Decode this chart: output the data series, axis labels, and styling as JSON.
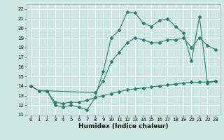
{
  "xlabel": "Humidex (Indice chaleur)",
  "bg_color": "#cce8e0",
  "line_color": "#2e7d6e",
  "grid_color": "#ffffff",
  "xlim": [
    -0.5,
    23.5
  ],
  "ylim": [
    11,
    22.5
  ],
  "xticks": [
    0,
    1,
    2,
    3,
    4,
    5,
    6,
    7,
    8,
    9,
    10,
    11,
    12,
    13,
    14,
    15,
    16,
    17,
    18,
    19,
    20,
    21,
    22,
    23
  ],
  "yticks": [
    11,
    12,
    13,
    14,
    15,
    16,
    17,
    18,
    19,
    20,
    21,
    22
  ],
  "curve1_x": [
    0,
    1,
    2,
    3,
    4,
    5,
    6,
    7,
    8,
    9,
    10,
    11,
    12,
    13,
    14,
    15,
    16,
    17,
    18,
    19,
    20,
    21,
    22,
    23
  ],
  "curve1_y": [
    14.0,
    13.5,
    13.5,
    12.0,
    11.8,
    12.0,
    11.8,
    11.5,
    12.8,
    15.5,
    19.0,
    19.8,
    21.7,
    21.6,
    20.5,
    20.2,
    20.8,
    21.0,
    20.2,
    19.5,
    16.6,
    21.2,
    14.3,
    14.5
  ],
  "curve2_x": [
    0,
    1,
    2,
    8,
    9,
    10,
    11,
    12,
    13,
    14,
    15,
    16,
    17,
    18,
    19,
    20,
    21,
    22,
    23
  ],
  "curve2_y": [
    14.0,
    13.5,
    13.5,
    13.3,
    14.5,
    16.5,
    17.5,
    18.5,
    19.0,
    18.8,
    18.5,
    18.5,
    18.8,
    18.8,
    19.0,
    18.0,
    19.0,
    18.2,
    17.8
  ],
  "curve3_x": [
    0,
    1,
    2,
    3,
    4,
    5,
    6,
    7,
    8,
    9,
    10,
    11,
    12,
    13,
    14,
    15,
    16,
    17,
    18,
    19,
    20,
    21,
    22,
    23
  ],
  "curve3_y": [
    14.0,
    13.5,
    13.5,
    12.3,
    12.2,
    12.3,
    12.3,
    12.5,
    12.8,
    13.0,
    13.2,
    13.4,
    13.6,
    13.7,
    13.8,
    13.9,
    14.0,
    14.1,
    14.2,
    14.3,
    14.4,
    14.4,
    14.4,
    14.5
  ],
  "xlabel_fontsize": 6.5,
  "tick_fontsize": 5.0,
  "lw": 0.8,
  "ms": 2.0
}
